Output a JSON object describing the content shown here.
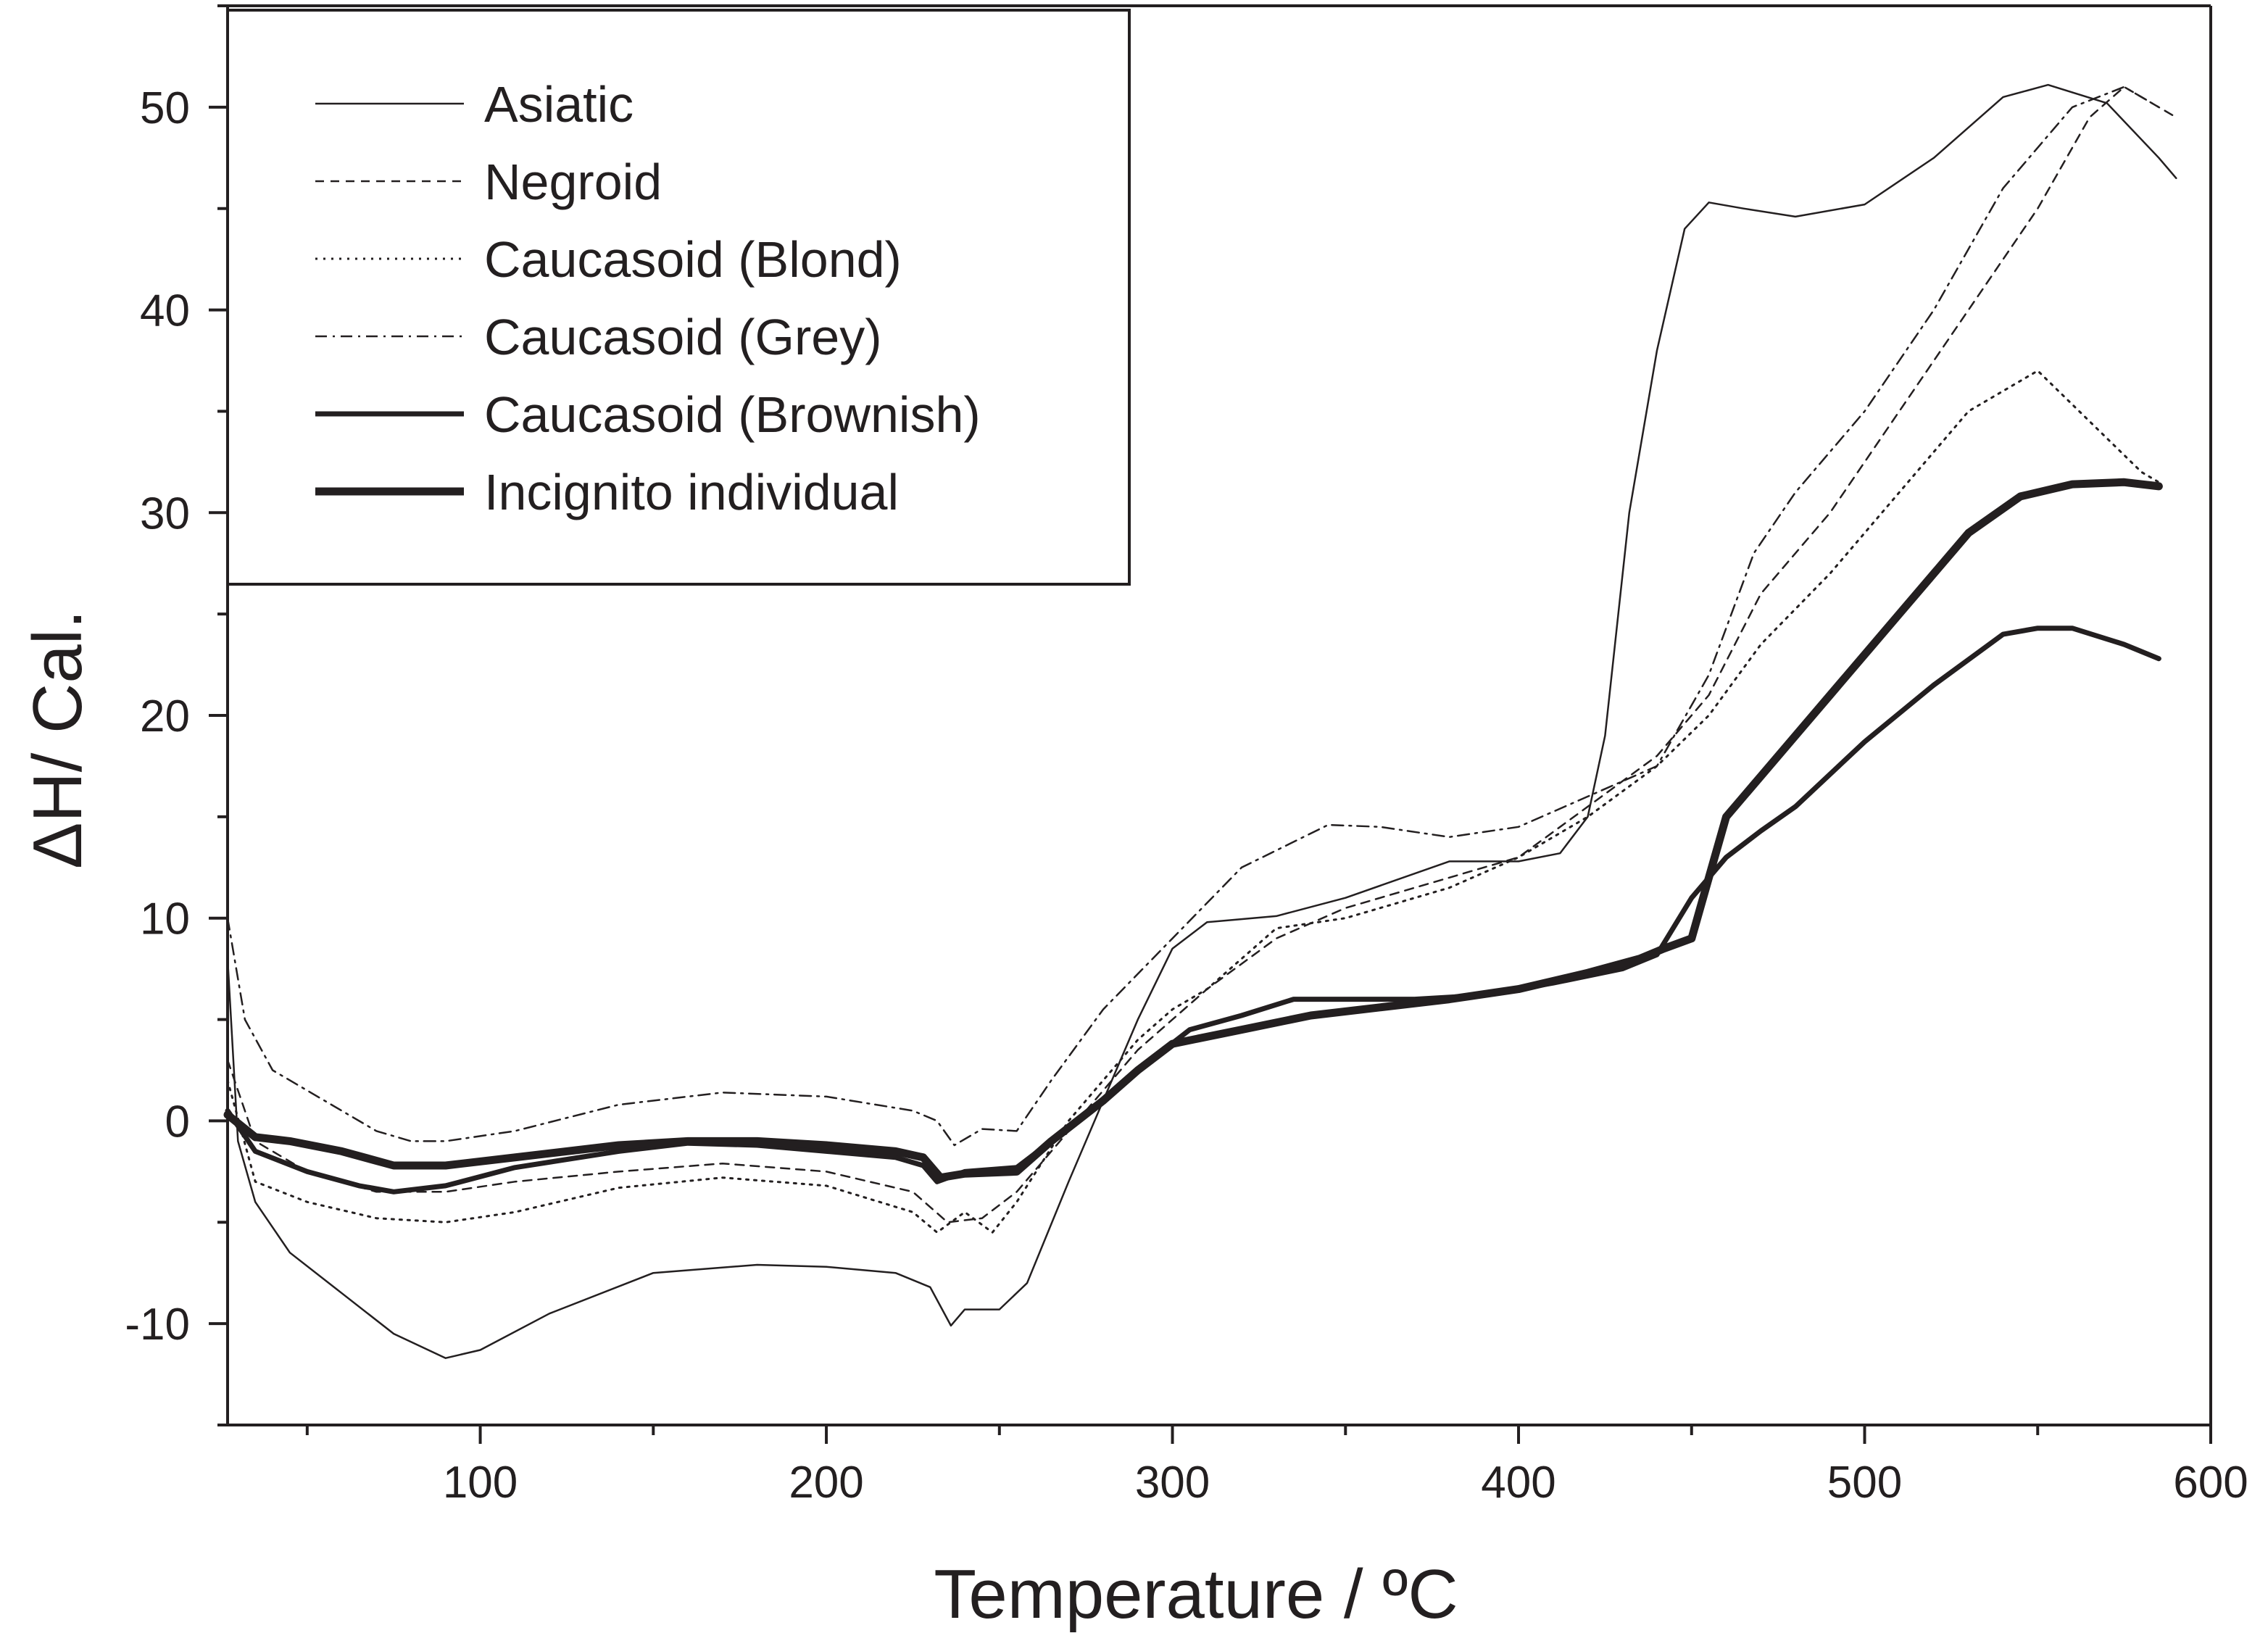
{
  "chart_data": {
    "type": "line",
    "title": "",
    "xlabel": "Temperature / ºC",
    "ylabel": "ΔH/ Cal.",
    "xlim": [
      27,
      600
    ],
    "ylim": [
      -15,
      55
    ],
    "xticks": [
      100,
      200,
      300,
      400,
      500,
      600
    ],
    "yticks": [
      -10,
      0,
      10,
      20,
      30,
      40,
      50
    ],
    "legend_position": "top-left",
    "series": [
      {
        "name": "Asiatic",
        "style": "thin-solid",
        "points": [
          [
            27,
            8
          ],
          [
            30,
            -1
          ],
          [
            35,
            -4
          ],
          [
            45,
            -6.5
          ],
          [
            60,
            -8.5
          ],
          [
            75,
            -10.5
          ],
          [
            90,
            -11.7
          ],
          [
            100,
            -11.3
          ],
          [
            120,
            -9.5
          ],
          [
            150,
            -7.5
          ],
          [
            180,
            -7.1
          ],
          [
            200,
            -7.2
          ],
          [
            220,
            -7.5
          ],
          [
            230,
            -8.2
          ],
          [
            236,
            -10.1
          ],
          [
            240,
            -9.3
          ],
          [
            250,
            -9.3
          ],
          [
            258,
            -8
          ],
          [
            270,
            -3
          ],
          [
            280,
            1
          ],
          [
            290,
            5
          ],
          [
            300,
            8.5
          ],
          [
            310,
            9.8
          ],
          [
            330,
            10.1
          ],
          [
            350,
            11
          ],
          [
            380,
            12.8
          ],
          [
            400,
            12.8
          ],
          [
            412,
            13.2
          ],
          [
            420,
            15
          ],
          [
            425,
            19
          ],
          [
            432,
            30
          ],
          [
            440,
            38
          ],
          [
            448,
            44
          ],
          [
            455,
            45.3
          ],
          [
            465,
            45
          ],
          [
            480,
            44.6
          ],
          [
            500,
            45.2
          ],
          [
            520,
            47.5
          ],
          [
            540,
            50.5
          ],
          [
            553,
            51.1
          ],
          [
            570,
            50.2
          ],
          [
            585,
            47.5
          ],
          [
            590,
            46.5
          ]
        ]
      },
      {
        "name": "Negroid",
        "style": "dashed",
        "points": [
          [
            27,
            3
          ],
          [
            35,
            -1
          ],
          [
            50,
            -2.5
          ],
          [
            70,
            -3.5
          ],
          [
            90,
            -3.5
          ],
          [
            110,
            -3
          ],
          [
            140,
            -2.5
          ],
          [
            170,
            -2.1
          ],
          [
            200,
            -2.5
          ],
          [
            225,
            -3.5
          ],
          [
            235,
            -5
          ],
          [
            245,
            -4.8
          ],
          [
            255,
            -3.5
          ],
          [
            270,
            -0.5
          ],
          [
            290,
            3.5
          ],
          [
            300,
            5
          ],
          [
            310,
            6.5
          ],
          [
            330,
            9
          ],
          [
            350,
            10.5
          ],
          [
            380,
            12
          ],
          [
            400,
            13
          ],
          [
            420,
            15.5
          ],
          [
            440,
            18
          ],
          [
            455,
            21
          ],
          [
            470,
            26
          ],
          [
            490,
            30
          ],
          [
            510,
            35
          ],
          [
            530,
            40
          ],
          [
            550,
            45
          ],
          [
            565,
            49.5
          ],
          [
            575,
            51
          ],
          [
            585,
            50
          ],
          [
            590,
            49.5
          ]
        ]
      },
      {
        "name": "Caucasoid (Blond)",
        "style": "dotted",
        "points": [
          [
            27,
            2
          ],
          [
            35,
            -3
          ],
          [
            50,
            -4
          ],
          [
            70,
            -4.8
          ],
          [
            90,
            -5
          ],
          [
            110,
            -4.5
          ],
          [
            140,
            -3.3
          ],
          [
            170,
            -2.8
          ],
          [
            200,
            -3.2
          ],
          [
            225,
            -4.5
          ],
          [
            232,
            -5.5
          ],
          [
            240,
            -4.5
          ],
          [
            248,
            -5.5
          ],
          [
            255,
            -4
          ],
          [
            270,
            0
          ],
          [
            290,
            4
          ],
          [
            300,
            5.5
          ],
          [
            310,
            6.5
          ],
          [
            330,
            9.5
          ],
          [
            350,
            10
          ],
          [
            380,
            11.5
          ],
          [
            400,
            13
          ],
          [
            420,
            15
          ],
          [
            440,
            17.5
          ],
          [
            455,
            20
          ],
          [
            470,
            23.5
          ],
          [
            490,
            27
          ],
          [
            510,
            31
          ],
          [
            530,
            35
          ],
          [
            550,
            37
          ],
          [
            565,
            34.5
          ],
          [
            580,
            32
          ],
          [
            585,
            31.5
          ]
        ]
      },
      {
        "name": "Caucasoid (Grey)",
        "style": "dash-dot",
        "points": [
          [
            27,
            10
          ],
          [
            32,
            5
          ],
          [
            40,
            2.5
          ],
          [
            55,
            1
          ],
          [
            70,
            -0.5
          ],
          [
            80,
            -1
          ],
          [
            90,
            -1
          ],
          [
            110,
            -0.5
          ],
          [
            140,
            0.8
          ],
          [
            170,
            1.4
          ],
          [
            200,
            1.2
          ],
          [
            225,
            0.5
          ],
          [
            232,
            0
          ],
          [
            237,
            -1.2
          ],
          [
            245,
            -0.4
          ],
          [
            255,
            -0.5
          ],
          [
            265,
            2
          ],
          [
            280,
            5.5
          ],
          [
            300,
            9
          ],
          [
            320,
            12.5
          ],
          [
            345,
            14.6
          ],
          [
            360,
            14.5
          ],
          [
            380,
            14
          ],
          [
            400,
            14.5
          ],
          [
            420,
            16
          ],
          [
            440,
            17.5
          ],
          [
            455,
            22
          ],
          [
            468,
            28
          ],
          [
            480,
            31
          ],
          [
            500,
            35
          ],
          [
            520,
            40
          ],
          [
            540,
            46
          ],
          [
            560,
            50
          ],
          [
            575,
            51
          ],
          [
            585,
            50
          ]
        ]
      },
      {
        "name": "Caucasoid (Brownish)",
        "style": "medium-solid",
        "points": [
          [
            27,
            0.5
          ],
          [
            35,
            -1.5
          ],
          [
            50,
            -2.5
          ],
          [
            65,
            -3.2
          ],
          [
            75,
            -3.5
          ],
          [
            90,
            -3.2
          ],
          [
            110,
            -2.3
          ],
          [
            140,
            -1.5
          ],
          [
            160,
            -1.1
          ],
          [
            180,
            -1.2
          ],
          [
            200,
            -1.5
          ],
          [
            220,
            -1.8
          ],
          [
            228,
            -2.2
          ],
          [
            232,
            -3
          ],
          [
            240,
            -2.5
          ],
          [
            255,
            -2.3
          ],
          [
            265,
            -1
          ],
          [
            280,
            1
          ],
          [
            290,
            2.5
          ],
          [
            305,
            4.5
          ],
          [
            320,
            5.2
          ],
          [
            335,
            6
          ],
          [
            350,
            6
          ],
          [
            370,
            6
          ],
          [
            390,
            6.2
          ],
          [
            410,
            6.8
          ],
          [
            430,
            7.5
          ],
          [
            440,
            8.2
          ],
          [
            450,
            11
          ],
          [
            460,
            13
          ],
          [
            470,
            14.3
          ],
          [
            480,
            15.5
          ],
          [
            500,
            18.7
          ],
          [
            520,
            21.5
          ],
          [
            540,
            24
          ],
          [
            550,
            24.3
          ],
          [
            560,
            24.3
          ],
          [
            575,
            23.5
          ],
          [
            585,
            22.8
          ]
        ]
      },
      {
        "name": "Incignito individual",
        "style": "thick-solid",
        "points": [
          [
            27,
            0.3
          ],
          [
            35,
            -0.8
          ],
          [
            45,
            -1
          ],
          [
            60,
            -1.5
          ],
          [
            75,
            -2.2
          ],
          [
            90,
            -2.2
          ],
          [
            110,
            -1.8
          ],
          [
            140,
            -1.2
          ],
          [
            160,
            -1
          ],
          [
            180,
            -1
          ],
          [
            200,
            -1.2
          ],
          [
            220,
            -1.5
          ],
          [
            228,
            -1.8
          ],
          [
            233,
            -2.8
          ],
          [
            240,
            -2.6
          ],
          [
            255,
            -2.5
          ],
          [
            265,
            -1
          ],
          [
            280,
            1
          ],
          [
            290,
            2.5
          ],
          [
            300,
            3.8
          ],
          [
            320,
            4.5
          ],
          [
            340,
            5.2
          ],
          [
            360,
            5.6
          ],
          [
            380,
            6
          ],
          [
            400,
            6.5
          ],
          [
            420,
            7.3
          ],
          [
            435,
            8
          ],
          [
            442,
            8.5
          ],
          [
            450,
            9
          ],
          [
            455,
            12
          ],
          [
            460,
            15
          ],
          [
            470,
            17
          ],
          [
            490,
            21
          ],
          [
            510,
            25
          ],
          [
            530,
            29
          ],
          [
            545,
            30.8
          ],
          [
            560,
            31.4
          ],
          [
            575,
            31.5
          ],
          [
            585,
            31.3
          ]
        ]
      }
    ]
  }
}
